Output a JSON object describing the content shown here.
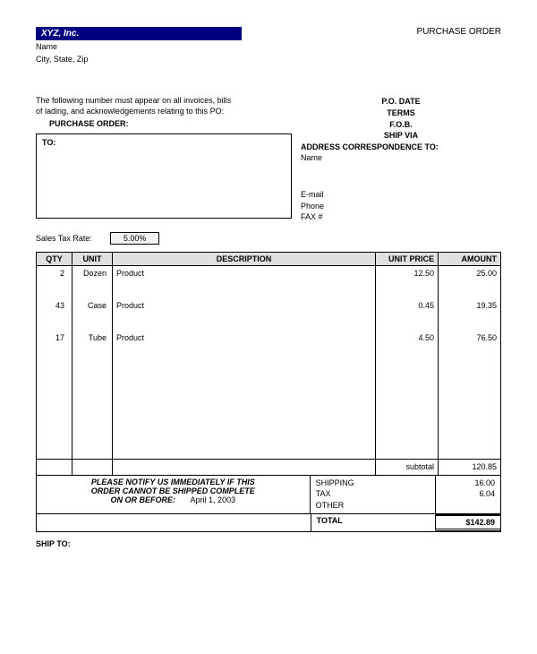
{
  "header": {
    "company_name": "XYZ, Inc.",
    "company_addr_1": "Name",
    "company_addr_2": "City, State, Zip",
    "doc_title": "PURCHASE ORDER"
  },
  "instructions": {
    "line1": "The following number must appear on all invoices, bills",
    "line2": "of lading, and acknowledgements relating to this PO:",
    "po_label": "PURCHASE ORDER:"
  },
  "to_box_label": "TO:",
  "meta": {
    "po_date": "P.O. DATE",
    "terms": "TERMS",
    "fob": "F.O.B.",
    "ship_via": "SHIP VIA",
    "addr_corr": "ADDRESS CORRESPONDENCE TO:",
    "name": "Name",
    "email": "E-mail",
    "phone": "Phone",
    "fax": "FAX #"
  },
  "tax": {
    "label": "Sales Tax Rate:",
    "value": "5.00%"
  },
  "table": {
    "columns": {
      "qty": "QTY",
      "unit": "UNIT",
      "desc": "DESCRIPTION",
      "uprice": "UNIT PRICE",
      "amt": "AMOUNT"
    },
    "rows": [
      {
        "qty": "2",
        "unit": "Dozen",
        "desc": "Product",
        "uprice": "12.50",
        "amt": "25.00"
      },
      {
        "qty": "43",
        "unit": "Case",
        "desc": "Product",
        "uprice": "0.45",
        "amt": "19.35"
      },
      {
        "qty": "17",
        "unit": "Tube",
        "desc": "Product",
        "uprice": "4.50",
        "amt": "76.50"
      }
    ],
    "subtotal_label": "subtotal",
    "subtotal_value": "120.85"
  },
  "footer": {
    "notice_1": "PLEASE NOTIFY US IMMEDIATELY IF THIS",
    "notice_2": "ORDER CANNOT BE SHIPPED COMPLETE",
    "notice_3_label": "ON OR BEFORE:",
    "notice_3_date": "April 1, 2003",
    "shipping_label": "SHIPPING",
    "shipping_value": "16.00",
    "tax_label": "TAX",
    "tax_value": "6.04",
    "other_label": "OTHER",
    "other_value": "",
    "total_label": "TOTAL",
    "total_value": "$142.89"
  },
  "shipto_label": "SHIP TO:",
  "colors": {
    "brand_bar_bg": "#000080",
    "brand_bar_fg": "#ffffff",
    "header_bg": "#e0e0e0",
    "border": "#000000",
    "tax_bg": "#f2f2f2"
  }
}
